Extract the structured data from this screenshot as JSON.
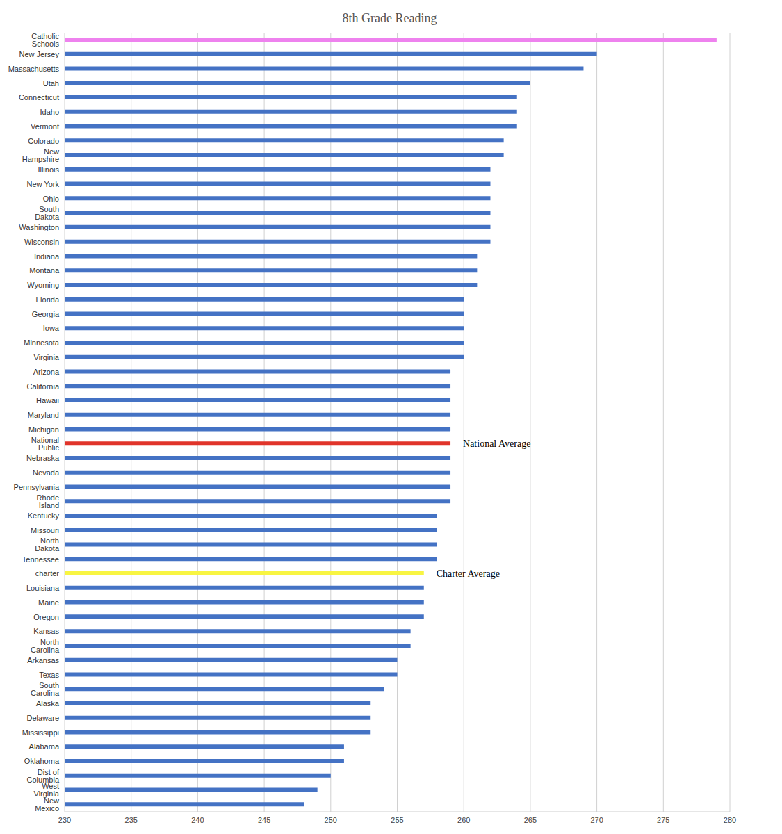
{
  "chart_data": {
    "type": "bar",
    "orientation": "horizontal",
    "title": "8th Grade Reading",
    "categories": [
      "Catholic Schools",
      "New Jersey",
      "Massachusetts",
      "Utah",
      "Connecticut",
      "Idaho",
      "Vermont",
      "Colorado",
      "New Hampshire",
      "Illinois",
      "New York",
      "Ohio",
      "South Dakota",
      "Washington",
      "Wisconsin",
      "Indiana",
      "Montana",
      "Wyoming",
      "Florida",
      "Georgia",
      "Iowa",
      "Minnesota",
      "Virginia",
      "Arizona",
      "California",
      "Hawaii",
      "Maryland",
      "Michigan",
      "National Public",
      "Nebraska",
      "Nevada",
      "Pennsylvania",
      "Rhode Island",
      "Kentucky",
      "Missouri",
      "North Dakota",
      "Tennessee",
      "charter",
      "Louisiana",
      "Maine",
      "Oregon",
      "Kansas",
      "North Carolina",
      "Arkansas",
      "Texas",
      "South Carolina",
      "Alaska",
      "Delaware",
      "Mississippi",
      "Alabama",
      "Oklahoma",
      "Dist of Columbia",
      "West Virginia",
      "New Mexico"
    ],
    "values": [
      279,
      270,
      269,
      265,
      264,
      264,
      264,
      263,
      263,
      262,
      262,
      262,
      262,
      262,
      262,
      261,
      261,
      261,
      260,
      260,
      260,
      260,
      260,
      259,
      259,
      259,
      259,
      259,
      259,
      259,
      259,
      259,
      259,
      258,
      258,
      258,
      258,
      257,
      257,
      257,
      257,
      256,
      256,
      255,
      255,
      254,
      253,
      253,
      253,
      251,
      251,
      250,
      249,
      248
    ],
    "colors": [
      "#ee82ee",
      "#4472c4",
      "#4472c4",
      "#4472c4",
      "#4472c4",
      "#4472c4",
      "#4472c4",
      "#4472c4",
      "#4472c4",
      "#4472c4",
      "#4472c4",
      "#4472c4",
      "#4472c4",
      "#4472c4",
      "#4472c4",
      "#4472c4",
      "#4472c4",
      "#4472c4",
      "#4472c4",
      "#4472c4",
      "#4472c4",
      "#4472c4",
      "#4472c4",
      "#4472c4",
      "#4472c4",
      "#4472c4",
      "#4472c4",
      "#4472c4",
      "#e0342a",
      "#4472c4",
      "#4472c4",
      "#4472c4",
      "#4472c4",
      "#4472c4",
      "#4472c4",
      "#4472c4",
      "#4472c4",
      "#f8f542",
      "#4472c4",
      "#4472c4",
      "#4472c4",
      "#4472c4",
      "#4472c4",
      "#4472c4",
      "#4472c4",
      "#4472c4",
      "#4472c4",
      "#4472c4",
      "#4472c4",
      "#4472c4",
      "#4472c4",
      "#4472c4",
      "#4472c4",
      "#4472c4"
    ],
    "annotations": [
      {
        "text": "National Average",
        "category": "National Public"
      },
      {
        "text": "Charter Average",
        "category": "charter"
      }
    ],
    "xlim": [
      230,
      280
    ],
    "xticks": [
      230,
      235,
      240,
      245,
      250,
      255,
      260,
      265,
      270,
      275,
      280
    ],
    "grid": true
  }
}
